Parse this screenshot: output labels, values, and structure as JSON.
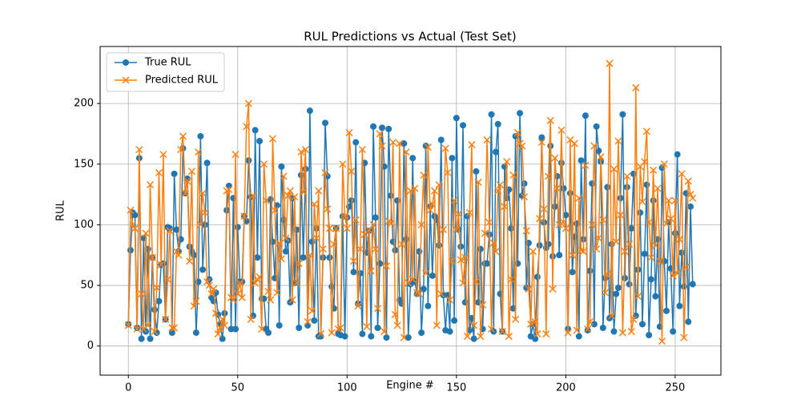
{
  "chart_data": {
    "type": "line",
    "title": "RUL Predictions vs Actual (Test Set)",
    "x_label": "Engine #",
    "y_label": "RUL",
    "x": [
      0,
      1,
      2,
      3,
      4,
      5,
      6,
      7,
      8,
      9,
      10,
      11,
      12,
      13,
      14,
      15,
      16,
      17,
      18,
      19,
      20,
      21,
      22,
      23,
      24,
      25,
      26,
      27,
      28,
      29,
      30,
      31,
      32,
      33,
      34,
      35,
      36,
      37,
      38,
      39,
      40,
      41,
      42,
      43,
      44,
      45,
      46,
      47,
      48,
      49,
      50,
      51,
      52,
      53,
      54,
      55,
      56,
      57,
      58,
      59,
      60,
      61,
      62,
      63,
      64,
      65,
      66,
      67,
      68,
      69,
      70,
      71,
      72,
      73,
      74,
      75,
      76,
      77,
      78,
      79,
      80,
      81,
      82,
      83,
      84,
      85,
      86,
      87,
      88,
      89,
      90,
      91,
      92,
      93,
      94,
      95,
      96,
      97,
      98,
      99,
      100,
      101,
      102,
      103,
      104,
      105,
      106,
      107,
      108,
      109,
      110,
      111,
      112,
      113,
      114,
      115,
      116,
      117,
      118,
      119,
      120,
      121,
      122,
      123,
      124,
      125,
      126,
      127,
      128,
      129,
      130,
      131,
      132,
      133,
      134,
      135,
      136,
      137,
      138,
      139,
      140,
      141,
      142,
      143,
      144,
      145,
      146,
      147,
      148,
      149,
      150,
      151,
      152,
      153,
      154,
      155,
      156,
      157,
      158,
      159,
      160,
      161,
      162,
      163,
      164,
      165,
      166,
      167,
      168,
      169,
      170,
      171,
      172,
      173,
      174,
      175,
      176,
      177,
      178,
      179,
      180,
      181,
      182,
      183,
      184,
      185,
      186,
      187,
      188,
      189,
      190,
      191,
      192,
      193,
      194,
      195,
      196,
      197,
      198,
      199,
      200,
      201,
      202,
      203,
      204,
      205,
      206,
      207,
      208,
      209,
      210,
      211,
      212,
      213,
      214,
      215,
      216,
      217,
      218,
      219,
      220,
      221,
      222,
      223,
      224,
      225,
      226,
      227,
      228,
      229,
      230,
      231,
      232,
      233,
      234,
      235,
      236,
      237,
      238,
      239,
      240,
      241,
      242,
      243,
      244,
      245,
      246,
      247,
      248,
      249,
      250,
      251,
      252,
      253,
      254,
      255,
      256,
      257,
      258
    ],
    "series": [
      {
        "name": "True RUL",
        "color": "#1f77b4",
        "marker": "circle",
        "values": [
          18,
          79,
          110,
          108,
          15,
          155,
          6,
          89,
          12,
          80,
          6,
          73,
          30,
          11,
          37,
          67,
          68,
          22,
          98,
          97,
          11,
          142,
          96,
          78,
          88,
          163,
          126,
          138,
          82,
          78,
          75,
          11,
          53,
          173,
          63,
          100,
          151,
          55,
          40,
          37,
          44,
          26,
          18,
          6,
          27,
          112,
          132,
          14,
          122,
          14,
          98,
          53,
          53,
          107,
          103,
          153,
          123,
          25,
          178,
          73,
          169,
          39,
          39,
          14,
          11,
          121,
          86,
          56,
          116,
          17,
          148,
          104,
          78,
          87,
          36,
          122,
          52,
          96,
          15,
          141,
          73,
          146,
          17,
          194,
          86,
          21,
          97,
          8,
          8,
          73,
          184,
          140,
          73,
          49,
          31,
          97,
          10,
          9,
          107,
          8,
          106,
          115,
          120,
          61,
          168,
          35,
          60,
          10,
          151,
          77,
          95,
          8,
          181,
          106,
          15,
          68,
          180,
          148,
          7,
          179,
          124,
          86,
          79,
          120,
          38,
          35,
          167,
          88,
          7,
          51,
          155,
          53,
          43,
          78,
          11,
          47,
          165,
          33,
          115,
          58,
          107,
          104,
          83,
          170,
          42,
          13,
          42,
          12,
          155,
          21,
          188,
          96,
          82,
          182,
          36,
          107,
          13,
          23,
          6,
          144,
          36,
          80,
          14,
          68,
          68,
          92,
          191,
          12,
          160,
          183,
          43,
          12,
          148,
          122,
          129,
          97,
          31,
          173,
          68,
          192,
          124,
          134,
          48,
          85,
          8,
          18,
          6,
          57,
          83,
          172,
          102,
          81,
          84,
          165,
          74,
          115,
          140,
          75,
          151,
          130,
          108,
          14,
          126,
          61,
          90,
          101,
          8,
          153,
          88,
          190,
          13,
          62,
          134,
          18,
          181,
          161,
          152,
          15,
          56,
          131,
          23,
          84,
          12,
          43,
          48,
          122,
          191,
          56,
          131,
          51,
          97,
          142,
          25,
          63,
          110,
          18,
          76,
          133,
          9,
          55,
          120,
          41,
          88,
          16,
          147,
          70,
          29,
          102,
          64,
          12,
          93,
          158,
          33,
          77,
          49,
          126,
          20,
          115,
          51
        ]
      },
      {
        "name": "Predicted RUL",
        "color": "#ff7f0e",
        "marker": "x",
        "values": [
          17,
          112,
          100,
          97,
          14,
          162,
          43,
          14,
          93,
          17,
          133,
          73,
          12,
          48,
          143,
          67,
          158,
          22,
          55,
          95,
          15,
          15,
          78,
          75,
          162,
          173,
          126,
          136,
          70,
          144,
          33,
          37,
          160,
          100,
          126,
          110,
          53,
          50,
          43,
          47,
          27,
          10,
          15,
          22,
          17,
          128,
          129,
          40,
          38,
          158,
          43,
          52,
          40,
          107,
          181,
          200,
          22,
          124,
          52,
          55,
          57,
          14,
          150,
          120,
          45,
          38,
          171,
          112,
          44,
          85,
          72,
          140,
          89,
          124,
          128,
          38,
          123,
          52,
          68,
          160,
          127,
          162,
          20,
          75,
          29,
          117,
          89,
          128,
          10,
          80,
          143,
          113,
          97,
          11,
          84,
          97,
          14,
          15,
          150,
          107,
          97,
          176,
          144,
          70,
          104,
          33,
          80,
          162,
          92,
          16,
          96,
          62,
          100,
          80,
          31,
          175,
          165,
          12,
          66,
          103,
          101,
          168,
          26,
          17,
          167,
          84,
          7,
          160,
          52,
          128,
          55,
          130,
          44,
          43,
          100,
          141,
          60,
          164,
          112,
          117,
          128,
          17,
          133,
          43,
          96,
          163,
          143,
          38,
          70,
          120,
          96,
          109,
          71,
          52,
          73,
          8,
          110,
          166,
          17,
          53,
          135,
          8,
          34,
          93,
          170,
          102,
          14,
          85,
          78,
          128,
          133,
          12,
          115,
          152,
          8,
          55,
          141,
          22,
          176,
          167,
          165,
          123,
          95,
          47,
          18,
          78,
          20,
          10,
          105,
          168,
          113,
          10,
          140,
          186,
          47,
          155,
          130,
          100,
          178,
          102,
          97,
          11,
          170,
          75,
          167,
          13,
          122,
          79,
          78,
          149,
          14,
          20,
          100,
          165,
          80,
          89,
          156,
          104,
          44,
          59,
          233,
          25,
          146,
          86,
          169,
          108,
          11,
          78,
          140,
          84,
          12,
          22,
          213,
          41,
          148,
          119,
          152,
          177,
          102,
          73,
          145,
          83,
          130,
          70,
          4,
          150,
          101,
          120,
          105,
          58,
          120,
          60,
          88,
          142,
          7,
          65,
          136,
          125,
          122
        ]
      }
    ],
    "xlim": [
      -12.9,
      270.9
    ],
    "ylim": [
      -24,
      247
    ],
    "xticks": [
      0,
      50,
      100,
      150,
      200,
      250
    ],
    "yticks": [
      0,
      50,
      100,
      150,
      200
    ],
    "grid": true,
    "legend": "upper-left"
  }
}
